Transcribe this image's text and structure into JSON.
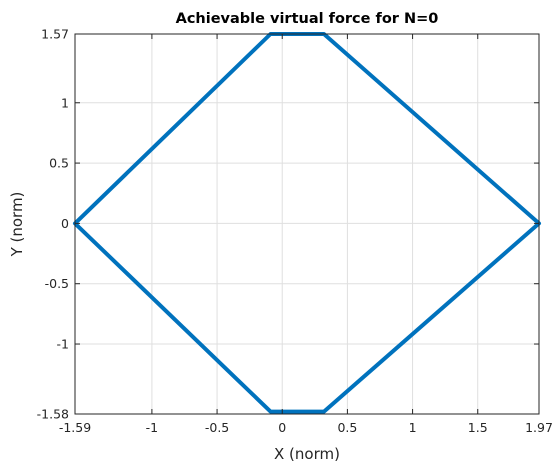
{
  "chart_data": {
    "type": "line",
    "title": "Achievable virtual force for N=0",
    "xlabel": "X (norm)",
    "ylabel": "Y (norm)",
    "xlim": [
      -1.59,
      1.97
    ],
    "ylim": [
      -1.58,
      1.57
    ],
    "xticks": [
      -1.59,
      -1,
      -0.5,
      0,
      0.5,
      1,
      1.5,
      1.97
    ],
    "xtick_labels": [
      "-1.59",
      "-1",
      "-0.5",
      "0",
      "0.5",
      "1",
      "1.5",
      "1.97"
    ],
    "yticks": [
      -1.58,
      -1,
      -0.5,
      0,
      0.5,
      1,
      1.57
    ],
    "ytick_labels": [
      "-1.58",
      "-1",
      "-0.5",
      "0",
      "0.5",
      "1",
      "1.57"
    ],
    "grid": true,
    "series": [
      {
        "color": "#0072BD",
        "x": [
          -1.59,
          -0.09,
          0.32,
          1.97,
          0.32,
          -0.09,
          -1.59
        ],
        "y": [
          0,
          1.57,
          1.57,
          0,
          -1.56,
          -1.56,
          0
        ]
      }
    ]
  }
}
